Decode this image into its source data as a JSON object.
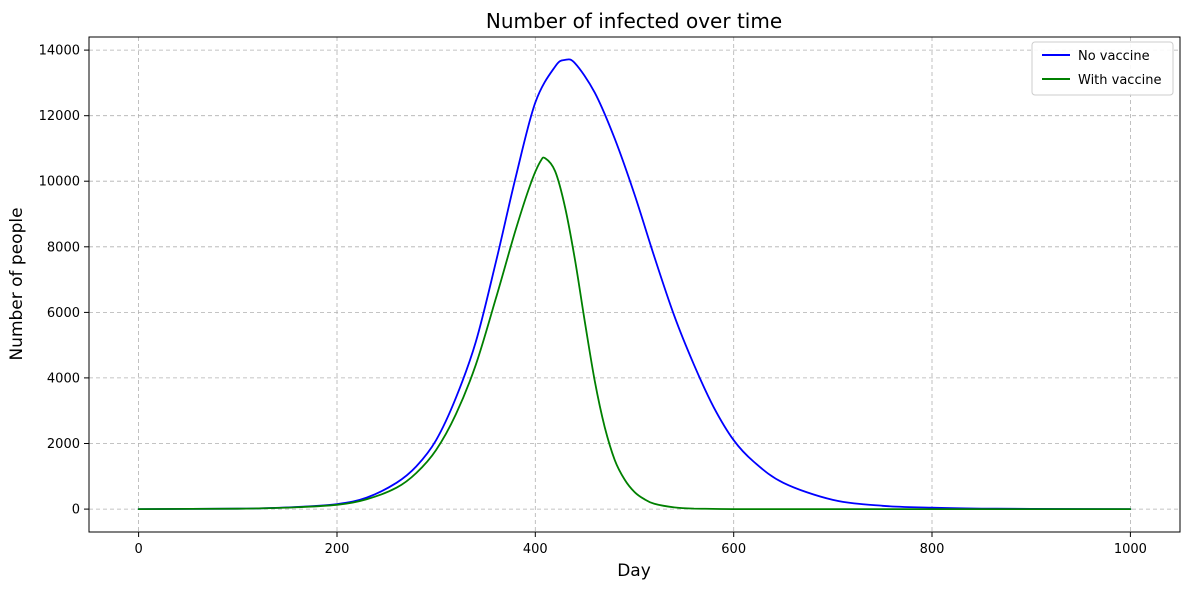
{
  "chart_data": {
    "type": "line",
    "title": "Number of infected over time",
    "xlabel": "Day",
    "ylabel": "Number of people",
    "xlim": [
      -50,
      1050
    ],
    "ylim": [
      -700,
      14400
    ],
    "x_ticks": [
      0,
      200,
      400,
      600,
      800,
      1000
    ],
    "y_ticks": [
      0,
      2000,
      4000,
      6000,
      8000,
      10000,
      12000,
      14000
    ],
    "grid": true,
    "grid_style": "dashed",
    "legend_position": "top-right",
    "series": [
      {
        "name": "No vaccine",
        "color": "#0000ff",
        "x": [
          0,
          100,
          150,
          200,
          230,
          260,
          280,
          300,
          320,
          340,
          360,
          380,
          400,
          420,
          430,
          440,
          460,
          480,
          500,
          520,
          540,
          560,
          580,
          600,
          620,
          650,
          700,
          750,
          800,
          850,
          900,
          1000
        ],
        "y": [
          0,
          10,
          50,
          150,
          350,
          800,
          1300,
          2100,
          3400,
          5100,
          7500,
          10100,
          12400,
          13500,
          13700,
          13600,
          12700,
          11300,
          9600,
          7700,
          5900,
          4400,
          3100,
          2100,
          1450,
          800,
          280,
          100,
          40,
          15,
          5,
          0
        ]
      },
      {
        "name": "With vaccine",
        "color": "#008000",
        "x": [
          0,
          100,
          150,
          200,
          230,
          260,
          280,
          300,
          320,
          340,
          360,
          380,
          395,
          405,
          410,
          420,
          430,
          440,
          450,
          460,
          470,
          480,
          490,
          500,
          510,
          520,
          540,
          560,
          600,
          700,
          800,
          1000
        ],
        "y": [
          0,
          10,
          45,
          130,
          300,
          650,
          1100,
          1800,
          2900,
          4400,
          6400,
          8500,
          9900,
          10600,
          10700,
          10300,
          9200,
          7600,
          5700,
          3900,
          2500,
          1500,
          900,
          520,
          300,
          160,
          50,
          15,
          0,
          0,
          0,
          0
        ]
      }
    ]
  }
}
